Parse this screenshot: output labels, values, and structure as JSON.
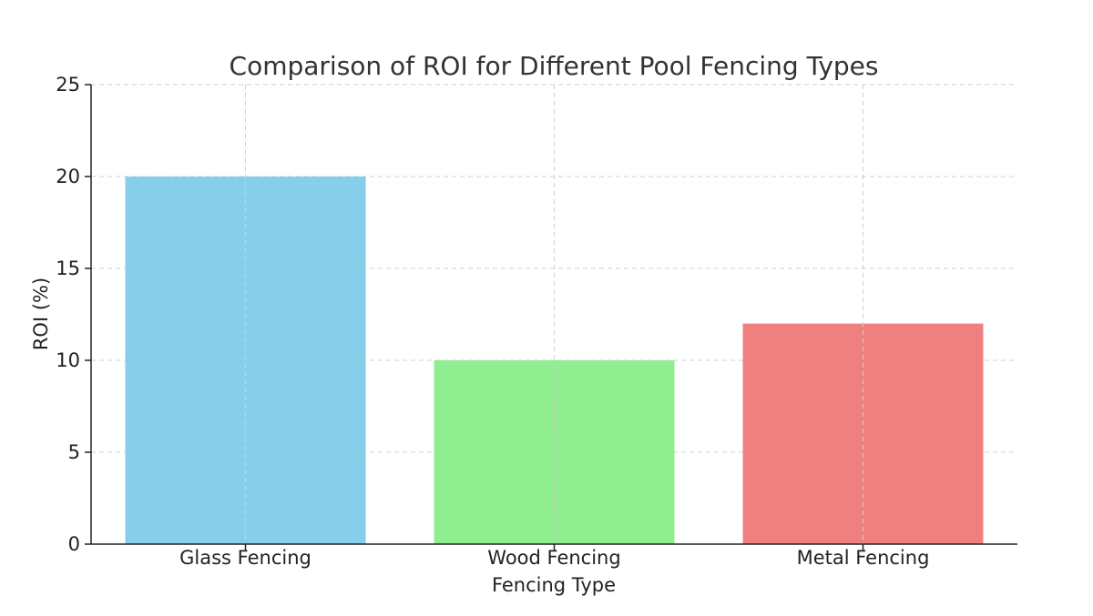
{
  "chart_data": {
    "type": "bar",
    "title": "Comparison of ROI for Different Pool Fencing Types",
    "xlabel": "Fencing Type",
    "ylabel": "ROI (%)",
    "categories": [
      "Glass Fencing",
      "Wood Fencing",
      "Metal Fencing"
    ],
    "values": [
      20,
      10,
      12
    ],
    "colors": [
      "#87ceeb",
      "#90ee90",
      "#f08080"
    ],
    "ylim": [
      0,
      25
    ],
    "yticks": [
      "0",
      "5",
      "10",
      "15",
      "20",
      "25"
    ],
    "grid": true
  }
}
